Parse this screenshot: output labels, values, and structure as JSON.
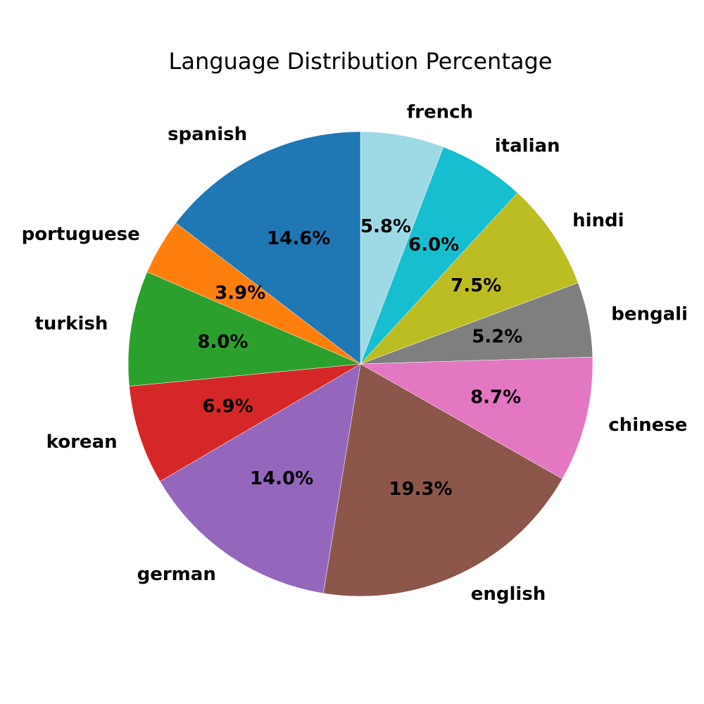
{
  "chart_data": {
    "type": "pie",
    "title": "Language Distribution Percentage",
    "start_angle_deg": 90,
    "direction": "clockwise",
    "slices": [
      {
        "label": "french",
        "value": 5.8,
        "pct_label": "5.8%",
        "color": "#9edae5"
      },
      {
        "label": "italian",
        "value": 6.0,
        "pct_label": "6.0%",
        "color": "#17becf"
      },
      {
        "label": "hindi",
        "value": 7.5,
        "pct_label": "7.5%",
        "color": "#bcbd22"
      },
      {
        "label": "bengali",
        "value": 5.2,
        "pct_label": "5.2%",
        "color": "#7f7f7f"
      },
      {
        "label": "chinese",
        "value": 8.7,
        "pct_label": "8.7%",
        "color": "#e377c2"
      },
      {
        "label": "english",
        "value": 19.3,
        "pct_label": "19.3%",
        "color": "#8c564b"
      },
      {
        "label": "german",
        "value": 14.0,
        "pct_label": "14.0%",
        "color": "#9467bd"
      },
      {
        "label": "korean",
        "value": 6.9,
        "pct_label": "6.9%",
        "color": "#d62728"
      },
      {
        "label": "turkish",
        "value": 8.0,
        "pct_label": "8.0%",
        "color": "#2ca02c"
      },
      {
        "label": "portuguese",
        "value": 3.9,
        "pct_label": "3.9%",
        "color": "#ff7f0e"
      },
      {
        "label": "spanish",
        "value": 14.6,
        "pct_label": "14.6%",
        "color": "#1f77b4"
      }
    ]
  }
}
